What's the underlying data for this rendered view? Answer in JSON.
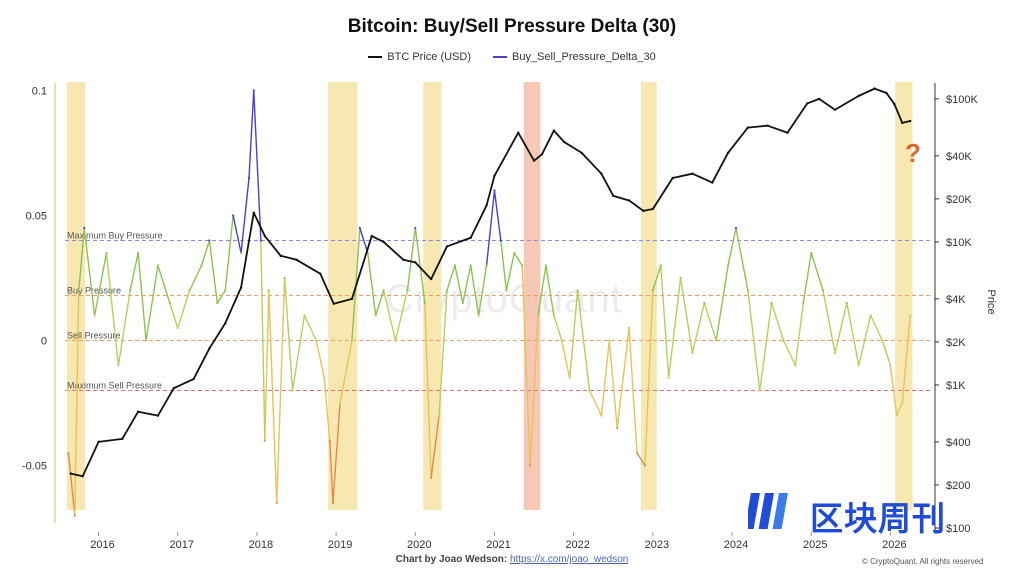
{
  "chart_data": {
    "type": "line",
    "title": "Bitcoin: Buy/Sell Pressure Delta (30)",
    "legend": [
      "BTC Price (USD)",
      "Buy_Sell_Pressure_Delta_30"
    ],
    "left_axis": {
      "ticks": [
        0.1,
        0.05,
        0,
        -0.05
      ],
      "tick_labels": [
        "0.1",
        "0.05",
        "0",
        "-0.05"
      ],
      "range": [
        -0.075,
        0.105
      ]
    },
    "right_axis": {
      "label": "Price",
      "ticks": [
        100000,
        40000,
        20000,
        10000,
        4000,
        2000,
        1000,
        400,
        200,
        100
      ],
      "tick_labels": [
        "$100K",
        "$40K",
        "$20K",
        "$10K",
        "$4K",
        "$2K",
        "$1K",
        "$400",
        "$200",
        "$100"
      ],
      "scale": "log",
      "range": [
        100,
        140000
      ]
    },
    "x_axis": {
      "ticks": [
        2016,
        2017,
        2018,
        2019,
        2020,
        2021,
        2022,
        2023,
        2024,
        2025,
        2026
      ],
      "tick_labels": [
        "2016",
        "2017",
        "2018",
        "2019",
        "2020",
        "2021",
        "2022",
        "2023",
        "2024",
        "2025",
        "2026"
      ],
      "range": [
        2015.45,
        2026.5
      ]
    },
    "reference_lines": [
      {
        "label": "Maximum Buy Pressure",
        "value": 0.04,
        "color": "#8a8ae6"
      },
      {
        "label": "Buy Pressure",
        "value": 0.018,
        "color": "#e8a06a"
      },
      {
        "label": "Sell Pressure",
        "value": 0.0,
        "color": "#e8a06a"
      },
      {
        "label": "Maximum Sell Pressure",
        "value": -0.02,
        "color": "#e07070"
      }
    ],
    "highlight_bands": [
      {
        "start": 2015.6,
        "end": 2015.83,
        "color": "#f6e3a3"
      },
      {
        "start": 2018.9,
        "end": 2019.27,
        "color": "#f6e3a3"
      },
      {
        "start": 2020.1,
        "end": 2020.33,
        "color": "#f6e3a3"
      },
      {
        "start": 2021.37,
        "end": 2021.58,
        "color": "#f4c0aa"
      },
      {
        "start": 2022.85,
        "end": 2023.05,
        "color": "#f6e3a3"
      },
      {
        "start": 2026.06,
        "end": 2026.28,
        "color": "#f6e3a3"
      }
    ],
    "series": [
      {
        "name": "BTC Price (USD)",
        "axis": "right",
        "x": [
          2015.65,
          2015.8,
          2016.0,
          2016.3,
          2016.5,
          2016.75,
          2016.95,
          2017.2,
          2017.4,
          2017.6,
          2017.8,
          2017.96,
          2018.1,
          2018.3,
          2018.5,
          2018.8,
          2018.97,
          2019.2,
          2019.45,
          2019.6,
          2019.85,
          2020.0,
          2020.2,
          2020.4,
          2020.7,
          2020.9,
          2021.0,
          2021.3,
          2021.5,
          2021.6,
          2021.75,
          2021.88,
          2022.1,
          2022.35,
          2022.5,
          2022.7,
          2022.88,
          2023.0,
          2023.25,
          2023.5,
          2023.75,
          2023.95,
          2024.2,
          2024.45,
          2024.7,
          2024.95,
          2025.1,
          2025.3,
          2025.6,
          2025.8,
          2025.95,
          2026.05,
          2026.15,
          2026.25
        ],
        "values": [
          240,
          230,
          400,
          420,
          650,
          610,
          950,
          1100,
          1800,
          2700,
          4800,
          16000,
          11000,
          8000,
          7500,
          6000,
          3700,
          4000,
          11000,
          10000,
          7500,
          7200,
          5500,
          9300,
          10700,
          18000,
          29000,
          58000,
          37000,
          41000,
          60000,
          50000,
          42000,
          30000,
          21000,
          19500,
          16500,
          17000,
          28000,
          30000,
          26000,
          42000,
          63000,
          65000,
          58000,
          93000,
          100000,
          84000,
          105000,
          118000,
          110000,
          92000,
          68000,
          70000
        ]
      },
      {
        "name": "Buy_Sell_Pressure_Delta_30",
        "axis": "left",
        "x": [
          2015.62,
          2015.7,
          2015.75,
          2015.82,
          2015.95,
          2016.1,
          2016.25,
          2016.4,
          2016.5,
          2016.6,
          2016.75,
          2016.9,
          2017.0,
          2017.15,
          2017.3,
          2017.4,
          2017.5,
          2017.6,
          2017.7,
          2017.8,
          2017.9,
          2017.96,
          2018.05,
          2018.1,
          2018.15,
          2018.25,
          2018.35,
          2018.45,
          2018.6,
          2018.75,
          2018.85,
          2018.92,
          2018.96,
          2019.05,
          2019.2,
          2019.3,
          2019.4,
          2019.5,
          2019.6,
          2019.75,
          2019.9,
          2020.0,
          2020.12,
          2020.2,
          2020.3,
          2020.4,
          2020.5,
          2020.6,
          2020.7,
          2020.8,
          2020.9,
          2021.0,
          2021.08,
          2021.15,
          2021.25,
          2021.35,
          2021.45,
          2021.55,
          2021.65,
          2021.75,
          2021.85,
          2021.95,
          2022.05,
          2022.2,
          2022.35,
          2022.45,
          2022.55,
          2022.7,
          2022.8,
          2022.9,
          2023.0,
          2023.1,
          2023.2,
          2023.35,
          2023.5,
          2023.65,
          2023.8,
          2023.95,
          2024.05,
          2024.2,
          2024.35,
          2024.5,
          2024.65,
          2024.8,
          2024.9,
          2025.0,
          2025.15,
          2025.3,
          2025.45,
          2025.6,
          2025.75,
          2025.9,
          2026.0,
          2026.08,
          2026.15,
          2026.25
        ],
        "values": [
          -0.045,
          -0.07,
          0.02,
          0.045,
          0.01,
          0.035,
          -0.01,
          0.02,
          0.035,
          0.0,
          0.03,
          0.015,
          0.005,
          0.02,
          0.03,
          0.04,
          0.015,
          0.02,
          0.05,
          0.035,
          0.065,
          0.1,
          0.04,
          -0.04,
          0.02,
          -0.065,
          0.025,
          -0.02,
          0.01,
          0.0,
          -0.015,
          -0.04,
          -0.065,
          -0.025,
          0.0,
          0.045,
          0.035,
          0.01,
          0.02,
          0.0,
          0.02,
          0.045,
          0.015,
          -0.055,
          -0.03,
          0.02,
          0.03,
          0.015,
          0.03,
          0.01,
          0.03,
          0.06,
          0.04,
          0.02,
          0.035,
          0.03,
          -0.05,
          0.01,
          0.03,
          0.01,
          0.0,
          -0.015,
          0.02,
          -0.02,
          -0.03,
          0.0,
          -0.035,
          0.005,
          -0.045,
          -0.05,
          0.02,
          0.03,
          -0.015,
          0.025,
          -0.005,
          0.015,
          0.0,
          0.03,
          0.045,
          0.02,
          -0.02,
          0.015,
          0.0,
          -0.01,
          0.015,
          0.035,
          0.02,
          -0.005,
          0.015,
          -0.01,
          0.01,
          0.0,
          -0.01,
          -0.03,
          -0.025,
          0.01
        ]
      }
    ],
    "annotation": "?"
  },
  "footer": {
    "credit": "Chart by Joao Wedson:",
    "link": "https://x.com/joao_wedson",
    "copyright": "© CryptoQuant. All rights reserved"
  },
  "watermark": "CryptoQuant",
  "brand": {
    "text": "区块周刊",
    "color": "#1f4bd6"
  }
}
